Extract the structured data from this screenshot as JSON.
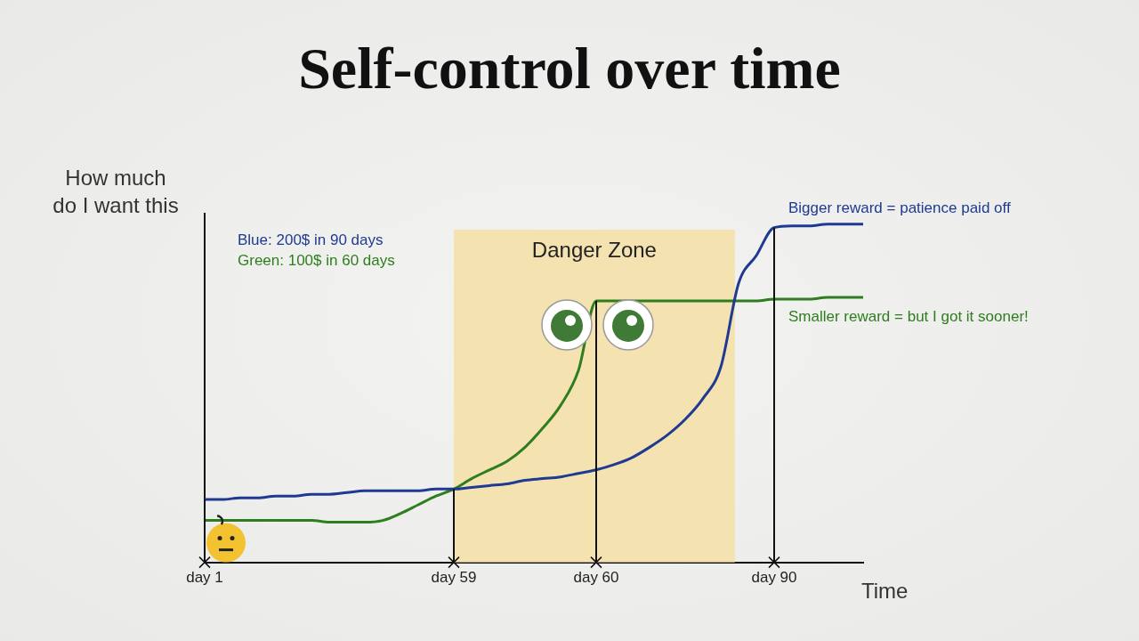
{
  "chart_data": {
    "type": "line",
    "title": "Self-control over time",
    "y_label": "How much\ndo I want this",
    "x_label": "Time",
    "danger_zone": "Danger Zone",
    "categories": [
      "day 1",
      null,
      null,
      null,
      null,
      null,
      null,
      null,
      null,
      null,
      null,
      null,
      null,
      null,
      "day 59",
      null,
      null,
      null,
      null,
      null,
      null,
      null,
      "day 60",
      null,
      null,
      null,
      null,
      null,
      null,
      null,
      null,
      null,
      "day 90",
      null,
      null,
      null,
      null,
      null
    ],
    "series": [
      {
        "name": "Blue: 200$ in 90 days",
        "color": "#1f3a93",
        "end_label": "Bigger reward = patience paid off",
        "values": [
          18,
          18,
          18.5,
          18.5,
          19,
          19,
          19.5,
          19.5,
          20,
          20.5,
          20.5,
          20.5,
          20.5,
          21,
          21,
          21.5,
          22,
          22.5,
          23.5,
          24,
          24.5,
          25.5,
          26.5,
          28,
          30,
          33,
          36.5,
          41,
          47,
          56,
          80,
          88,
          96,
          96.5,
          96.5,
          97,
          97,
          97
        ]
      },
      {
        "name": "Green: 100$ in 60 days",
        "color": "#2e7d1f",
        "end_label": "Smaller reward = but I got it sooner!",
        "values": [
          12,
          12,
          12,
          12,
          12,
          12,
          12,
          11.5,
          11.5,
          11.5,
          12,
          14,
          16.5,
          19,
          21,
          24,
          26.5,
          29,
          33,
          38.5,
          45,
          55,
          75,
          75,
          75,
          75,
          75,
          75,
          75,
          75,
          75,
          75,
          75.5,
          75.5,
          75.5,
          76,
          76,
          76
        ]
      }
    ],
    "ylim": [
      0,
      100
    ],
    "tick_labels": "x",
    "grid": false,
    "legend": "upper left"
  }
}
